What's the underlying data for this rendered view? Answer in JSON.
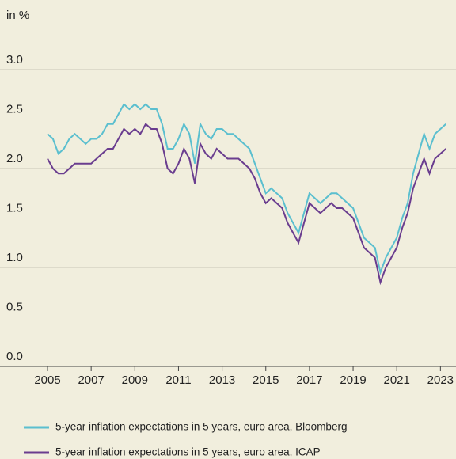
{
  "chart_data": {
    "type": "line",
    "y_unit_label": "in %",
    "x": [
      2005.0,
      2005.25,
      2005.5,
      2005.75,
      2006.0,
      2006.25,
      2006.5,
      2006.75,
      2007.0,
      2007.25,
      2007.5,
      2007.75,
      2008.0,
      2008.25,
      2008.5,
      2008.75,
      2009.0,
      2009.25,
      2009.5,
      2009.75,
      2010.0,
      2010.25,
      2010.5,
      2010.75,
      2011.0,
      2011.25,
      2011.5,
      2011.75,
      2012.0,
      2012.25,
      2012.5,
      2012.75,
      2013.0,
      2013.25,
      2013.5,
      2013.75,
      2014.0,
      2014.25,
      2014.5,
      2014.75,
      2015.0,
      2015.25,
      2015.5,
      2015.75,
      2016.0,
      2016.25,
      2016.5,
      2016.75,
      2017.0,
      2017.25,
      2017.5,
      2017.75,
      2018.0,
      2018.25,
      2018.5,
      2018.75,
      2019.0,
      2019.25,
      2019.5,
      2019.75,
      2020.0,
      2020.25,
      2020.5,
      2020.75,
      2021.0,
      2021.25,
      2021.5,
      2021.75,
      2022.0,
      2022.25,
      2022.5,
      2022.75,
      2023.0,
      2023.25
    ],
    "series": [
      {
        "name": "5-year inflation expectations in 5 years, euro area, Bloomberg",
        "color": "#5bbfcf",
        "values": [
          2.35,
          2.3,
          2.15,
          2.2,
          2.3,
          2.35,
          2.3,
          2.25,
          2.3,
          2.3,
          2.35,
          2.45,
          2.45,
          2.55,
          2.65,
          2.6,
          2.65,
          2.6,
          2.65,
          2.6,
          2.6,
          2.45,
          2.2,
          2.2,
          2.3,
          2.45,
          2.35,
          2.05,
          2.45,
          2.35,
          2.3,
          2.4,
          2.4,
          2.35,
          2.35,
          2.3,
          2.25,
          2.2,
          2.05,
          1.9,
          1.75,
          1.8,
          1.75,
          1.7,
          1.55,
          1.45,
          1.35,
          1.55,
          1.75,
          1.7,
          1.65,
          1.7,
          1.75,
          1.75,
          1.7,
          1.65,
          1.6,
          1.45,
          1.3,
          1.25,
          1.2,
          0.95,
          1.1,
          1.2,
          1.3,
          1.5,
          1.65,
          1.95,
          2.15,
          2.35,
          2.2,
          2.35,
          2.4,
          2.45
        ]
      },
      {
        "name": "5-year inflation expectations in 5 years, euro area, ICAP",
        "color": "#6a3d8f",
        "values": [
          2.1,
          2.0,
          1.95,
          1.95,
          2.0,
          2.05,
          2.05,
          2.05,
          2.05,
          2.1,
          2.15,
          2.2,
          2.2,
          2.3,
          2.4,
          2.35,
          2.4,
          2.35,
          2.45,
          2.4,
          2.4,
          2.25,
          2.0,
          1.95,
          2.05,
          2.2,
          2.1,
          1.85,
          2.25,
          2.15,
          2.1,
          2.2,
          2.15,
          2.1,
          2.1,
          2.1,
          2.05,
          2.0,
          1.9,
          1.75,
          1.65,
          1.7,
          1.65,
          1.6,
          1.45,
          1.35,
          1.25,
          1.45,
          1.65,
          1.6,
          1.55,
          1.6,
          1.65,
          1.6,
          1.6,
          1.55,
          1.5,
          1.35,
          1.2,
          1.15,
          1.1,
          0.85,
          1.0,
          1.1,
          1.2,
          1.4,
          1.55,
          1.8,
          1.95,
          2.1,
          1.95,
          2.1,
          2.15,
          2.2
        ]
      }
    ],
    "xlim": [
      2005,
      2023.35
    ],
    "xticks": [
      2005,
      2007,
      2009,
      2011,
      2013,
      2015,
      2017,
      2019,
      2021,
      2023
    ],
    "ylim": [
      0,
      3.0
    ],
    "yticks": [
      {
        "value": 0,
        "label": "0.0"
      },
      {
        "value": 0.5,
        "label": "0.5"
      },
      {
        "value": 1,
        "label": "1.0"
      },
      {
        "value": 1.5,
        "label": "1.5"
      },
      {
        "value": 2,
        "label": "2.0"
      },
      {
        "value": 2.5,
        "label": "2.5"
      },
      {
        "value": 3,
        "label": "3.0"
      }
    ],
    "grid": true
  }
}
